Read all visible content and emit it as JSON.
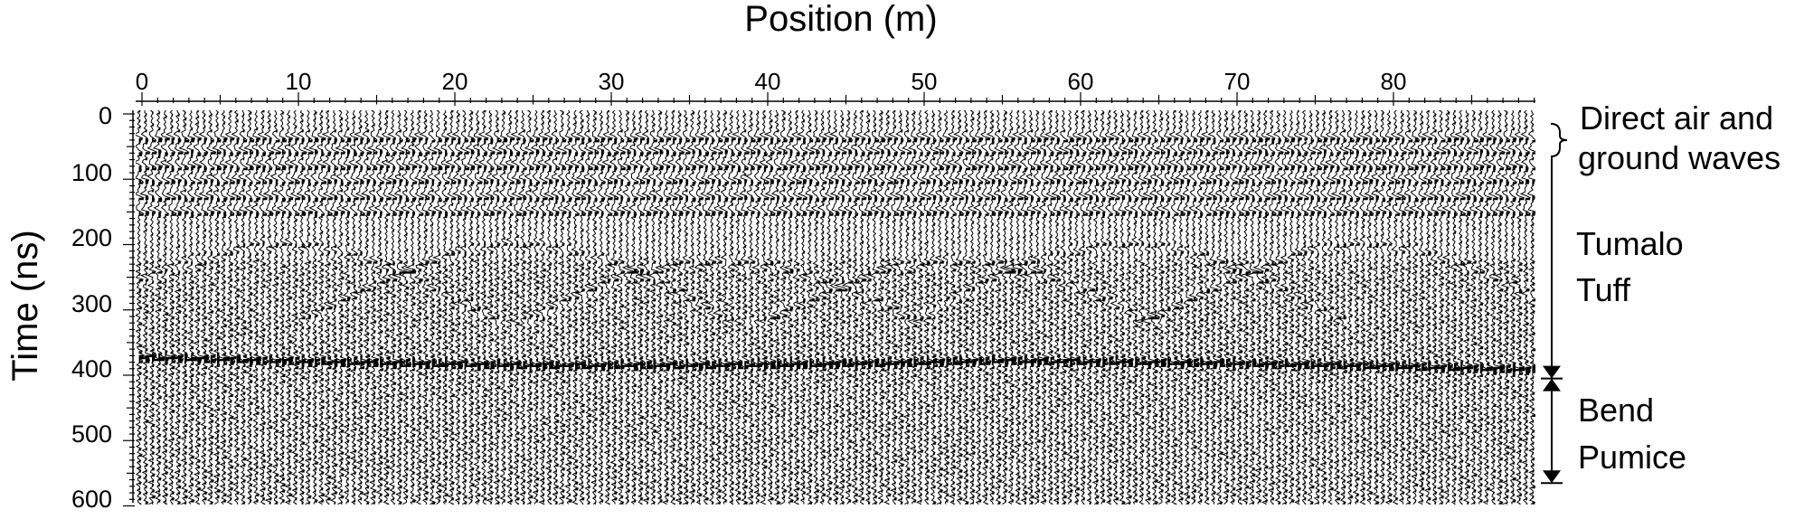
{
  "x_axis": {
    "title": "Position (m)",
    "ticks": [
      "0",
      "10",
      "20",
      "30",
      "40",
      "50",
      "60",
      "70",
      "80"
    ],
    "values": [
      0,
      10,
      20,
      30,
      40,
      50,
      60,
      70,
      80
    ],
    "range": [
      0,
      89
    ]
  },
  "y_axis": {
    "title": "Time (ns)",
    "ticks": [
      "0",
      "100",
      "200",
      "300",
      "400",
      "500",
      "600"
    ],
    "values": [
      0,
      100,
      200,
      300,
      400,
      500,
      600
    ],
    "range": [
      0,
      600
    ]
  },
  "annotations": {
    "direct_waves": {
      "line1": "Direct air and",
      "line2": "ground waves",
      "time_range": [
        15,
        65
      ]
    },
    "tumalo_tuff": {
      "line1": "Tumalo",
      "line2": "Tuff",
      "time_range": [
        65,
        405
      ]
    },
    "bend_pumice": {
      "line1": "Bend",
      "line2": "Pumice",
      "time_range": [
        405,
        565
      ]
    }
  }
}
